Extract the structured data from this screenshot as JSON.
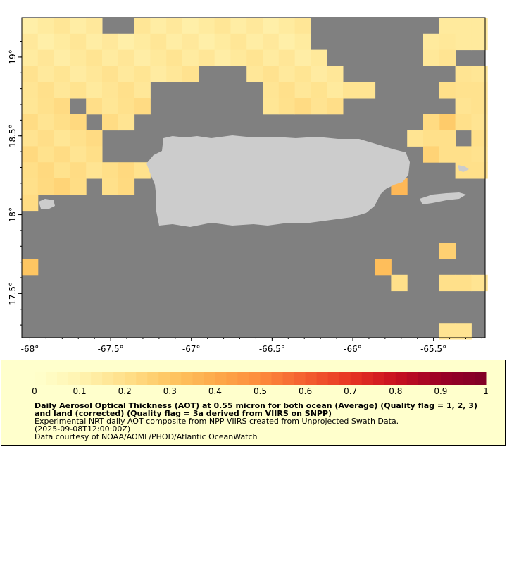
{
  "map": {
    "lon_range": [
      -68.05,
      -65.18
    ],
    "lat_range": [
      17.22,
      19.25
    ],
    "lon_ticks": [
      {
        "value": -68.0,
        "label": "-68°"
      },
      {
        "value": -67.5,
        "label": "-67.5°"
      },
      {
        "value": -67.0,
        "label": "-67°"
      },
      {
        "value": -66.5,
        "label": "-66.5°"
      },
      {
        "value": -66.0,
        "label": "-66°"
      },
      {
        "value": -65.5,
        "label": "-65.5°"
      }
    ],
    "lat_ticks": [
      {
        "value": 19.0,
        "label": "19°"
      },
      {
        "value": 18.5,
        "label": "18.5°"
      },
      {
        "value": 18.0,
        "label": "18°"
      },
      {
        "value": 17.5,
        "label": "17.5°"
      }
    ],
    "colors": {
      "no_data": "#808080",
      "land": "#cccccc",
      "border": "#000000"
    }
  },
  "legend": {
    "colorbar_min": 0,
    "colorbar_max": 1,
    "tick_labels": [
      "0",
      "0.1",
      "0.2",
      "0.3",
      "0.4",
      "0.5",
      "0.6",
      "0.7",
      "0.8",
      "0.9",
      "1"
    ],
    "colors": [
      "#ffffcc",
      "#fff3b0",
      "#ffe08a",
      "#fec662",
      "#fdaa4b",
      "#fd8c3c",
      "#f45f30",
      "#e73523",
      "#c8101f",
      "#9a0026",
      "#800026"
    ],
    "title": "Daily Aerosol Optical Thickness (AOT) at 0.55 micron for both ocean (Average) (Quality flag = 1, 2, 3) and land (corrected) (Quality flag = 3a derived from VIIRS on SNPP)",
    "description": "Experimental NRT daily AOT composite from NPP VIIRS created from Unprojected Swath Data.",
    "time": "(2025-09-08T12:00:00Z)",
    "credit": "Data courtesy of NOAA/AOML/PHOD/Atlantic OceanWatch",
    "background": "#ffffcc"
  }
}
